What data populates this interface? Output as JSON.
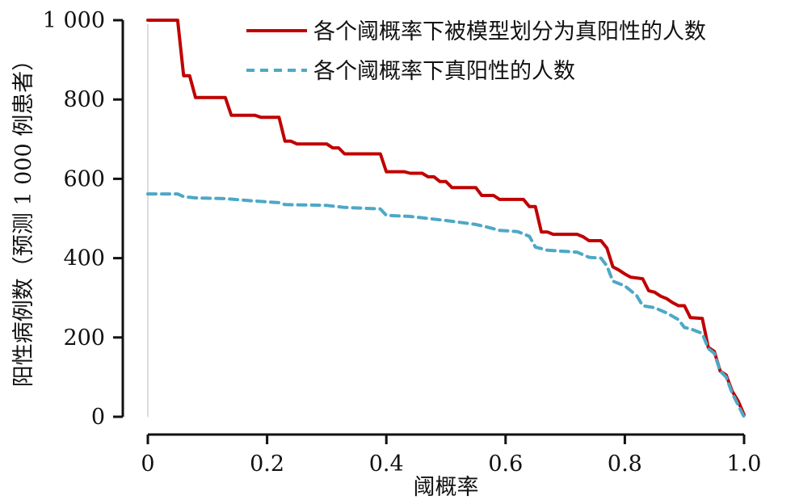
{
  "chart_data": {
    "type": "line",
    "title": "",
    "xlabel": "阈概率",
    "ylabel": "阳性病例数（预测 1 000 例患者）",
    "xlim": [
      0,
      1
    ],
    "ylim": [
      0,
      1000
    ],
    "x_ticks": [
      0,
      0.2,
      0.4,
      0.6,
      0.8,
      1.0
    ],
    "x_tick_labels": [
      "0",
      "0.2",
      "0.4",
      "0.6",
      "0.8",
      "1.0"
    ],
    "y_ticks": [
      0,
      200,
      400,
      600,
      800,
      1000
    ],
    "y_tick_labels": [
      "0",
      "200",
      "400",
      "600",
      "800",
      "1 000"
    ],
    "grid": false,
    "legend_position": "top-right",
    "series": [
      {
        "name": "各个阈概率下被模型划分为真阳性的人数",
        "color": "#c00000",
        "style": "solid",
        "points": [
          [
            0,
            1000
          ],
          [
            0.05,
            1000
          ],
          [
            0.055,
            930
          ],
          [
            0.06,
            860
          ],
          [
            0.07,
            860
          ],
          [
            0.08,
            805
          ],
          [
            0.13,
            805
          ],
          [
            0.14,
            760
          ],
          [
            0.18,
            760
          ],
          [
            0.19,
            755
          ],
          [
            0.22,
            755
          ],
          [
            0.23,
            695
          ],
          [
            0.24,
            695
          ],
          [
            0.25,
            688
          ],
          [
            0.3,
            688
          ],
          [
            0.31,
            678
          ],
          [
            0.32,
            678
          ],
          [
            0.33,
            663
          ],
          [
            0.39,
            663
          ],
          [
            0.4,
            618
          ],
          [
            0.43,
            618
          ],
          [
            0.44,
            614
          ],
          [
            0.46,
            614
          ],
          [
            0.47,
            605
          ],
          [
            0.48,
            605
          ],
          [
            0.49,
            593
          ],
          [
            0.5,
            593
          ],
          [
            0.51,
            578
          ],
          [
            0.55,
            578
          ],
          [
            0.56,
            558
          ],
          [
            0.58,
            558
          ],
          [
            0.59,
            548
          ],
          [
            0.63,
            548
          ],
          [
            0.64,
            530
          ],
          [
            0.65,
            530
          ],
          [
            0.66,
            466
          ],
          [
            0.67,
            466
          ],
          [
            0.68,
            460
          ],
          [
            0.72,
            460
          ],
          [
            0.73,
            454
          ],
          [
            0.74,
            444
          ],
          [
            0.76,
            444
          ],
          [
            0.77,
            425
          ],
          [
            0.78,
            378
          ],
          [
            0.79,
            370
          ],
          [
            0.8,
            360
          ],
          [
            0.81,
            352
          ],
          [
            0.83,
            348
          ],
          [
            0.84,
            318
          ],
          [
            0.85,
            314
          ],
          [
            0.86,
            304
          ],
          [
            0.87,
            298
          ],
          [
            0.88,
            288
          ],
          [
            0.89,
            280
          ],
          [
            0.9,
            280
          ],
          [
            0.91,
            250
          ],
          [
            0.93,
            248
          ],
          [
            0.94,
            175
          ],
          [
            0.95,
            165
          ],
          [
            0.96,
            115
          ],
          [
            0.97,
            105
          ],
          [
            0.98,
            65
          ],
          [
            0.99,
            40
          ],
          [
            1.0,
            5
          ]
        ]
      },
      {
        "name": "各个阈概率下真阳性的人数",
        "color": "#4da8c6",
        "style": "dashed",
        "points": [
          [
            0,
            562
          ],
          [
            0.05,
            562
          ],
          [
            0.06,
            555
          ],
          [
            0.08,
            552
          ],
          [
            0.13,
            550
          ],
          [
            0.17,
            545
          ],
          [
            0.22,
            540
          ],
          [
            0.23,
            535
          ],
          [
            0.3,
            533
          ],
          [
            0.33,
            528
          ],
          [
            0.39,
            524
          ],
          [
            0.4,
            508
          ],
          [
            0.44,
            505
          ],
          [
            0.47,
            500
          ],
          [
            0.5,
            495
          ],
          [
            0.55,
            485
          ],
          [
            0.57,
            478
          ],
          [
            0.59,
            470
          ],
          [
            0.62,
            467
          ],
          [
            0.64,
            455
          ],
          [
            0.65,
            428
          ],
          [
            0.67,
            420
          ],
          [
            0.72,
            415
          ],
          [
            0.74,
            402
          ],
          [
            0.76,
            400
          ],
          [
            0.77,
            380
          ],
          [
            0.78,
            342
          ],
          [
            0.8,
            330
          ],
          [
            0.81,
            318
          ],
          [
            0.82,
            305
          ],
          [
            0.83,
            280
          ],
          [
            0.85,
            275
          ],
          [
            0.87,
            262
          ],
          [
            0.89,
            245
          ],
          [
            0.9,
            225
          ],
          [
            0.91,
            222
          ],
          [
            0.93,
            210
          ],
          [
            0.94,
            172
          ],
          [
            0.95,
            160
          ],
          [
            0.96,
            115
          ],
          [
            0.97,
            100
          ],
          [
            0.98,
            60
          ],
          [
            0.99,
            30
          ],
          [
            1.0,
            0
          ]
        ]
      }
    ]
  }
}
